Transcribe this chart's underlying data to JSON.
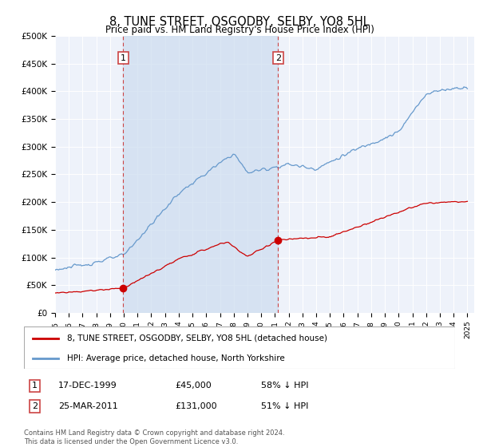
{
  "title": "8, TUNE STREET, OSGODBY, SELBY, YO8 5HL",
  "subtitle": "Price paid vs. HM Land Registry's House Price Index (HPI)",
  "ylim": [
    0,
    500000
  ],
  "yticks": [
    0,
    50000,
    100000,
    150000,
    200000,
    250000,
    300000,
    350000,
    400000,
    450000,
    500000
  ],
  "ytick_labels": [
    "£0",
    "£50K",
    "£100K",
    "£150K",
    "£200K",
    "£250K",
    "£300K",
    "£350K",
    "£400K",
    "£450K",
    "£500K"
  ],
  "xlim_start": 1995.0,
  "xlim_end": 2025.5,
  "background_color": "#ffffff",
  "plot_bg_color": "#eef2fa",
  "grid_color": "#ffffff",
  "sale1_date": 1999.96,
  "sale1_price": 45000,
  "sale1_label": "1",
  "sale2_date": 2011.23,
  "sale2_price": 131000,
  "sale2_label": "2",
  "red_line_color": "#cc0000",
  "blue_line_color": "#6699cc",
  "sale_marker_color": "#cc0000",
  "shaded_region_color": "#ccdcef",
  "legend_label_red": "8, TUNE STREET, OSGODBY, SELBY, YO8 5HL (detached house)",
  "legend_label_blue": "HPI: Average price, detached house, North Yorkshire",
  "annotation1_date": "17-DEC-1999",
  "annotation1_price": "£45,000",
  "annotation1_hpi": "58% ↓ HPI",
  "annotation2_date": "25-MAR-2011",
  "annotation2_price": "£131,000",
  "annotation2_hpi": "51% ↓ HPI",
  "footer_text": "Contains HM Land Registry data © Crown copyright and database right 2024.\nThis data is licensed under the Open Government Licence v3.0."
}
